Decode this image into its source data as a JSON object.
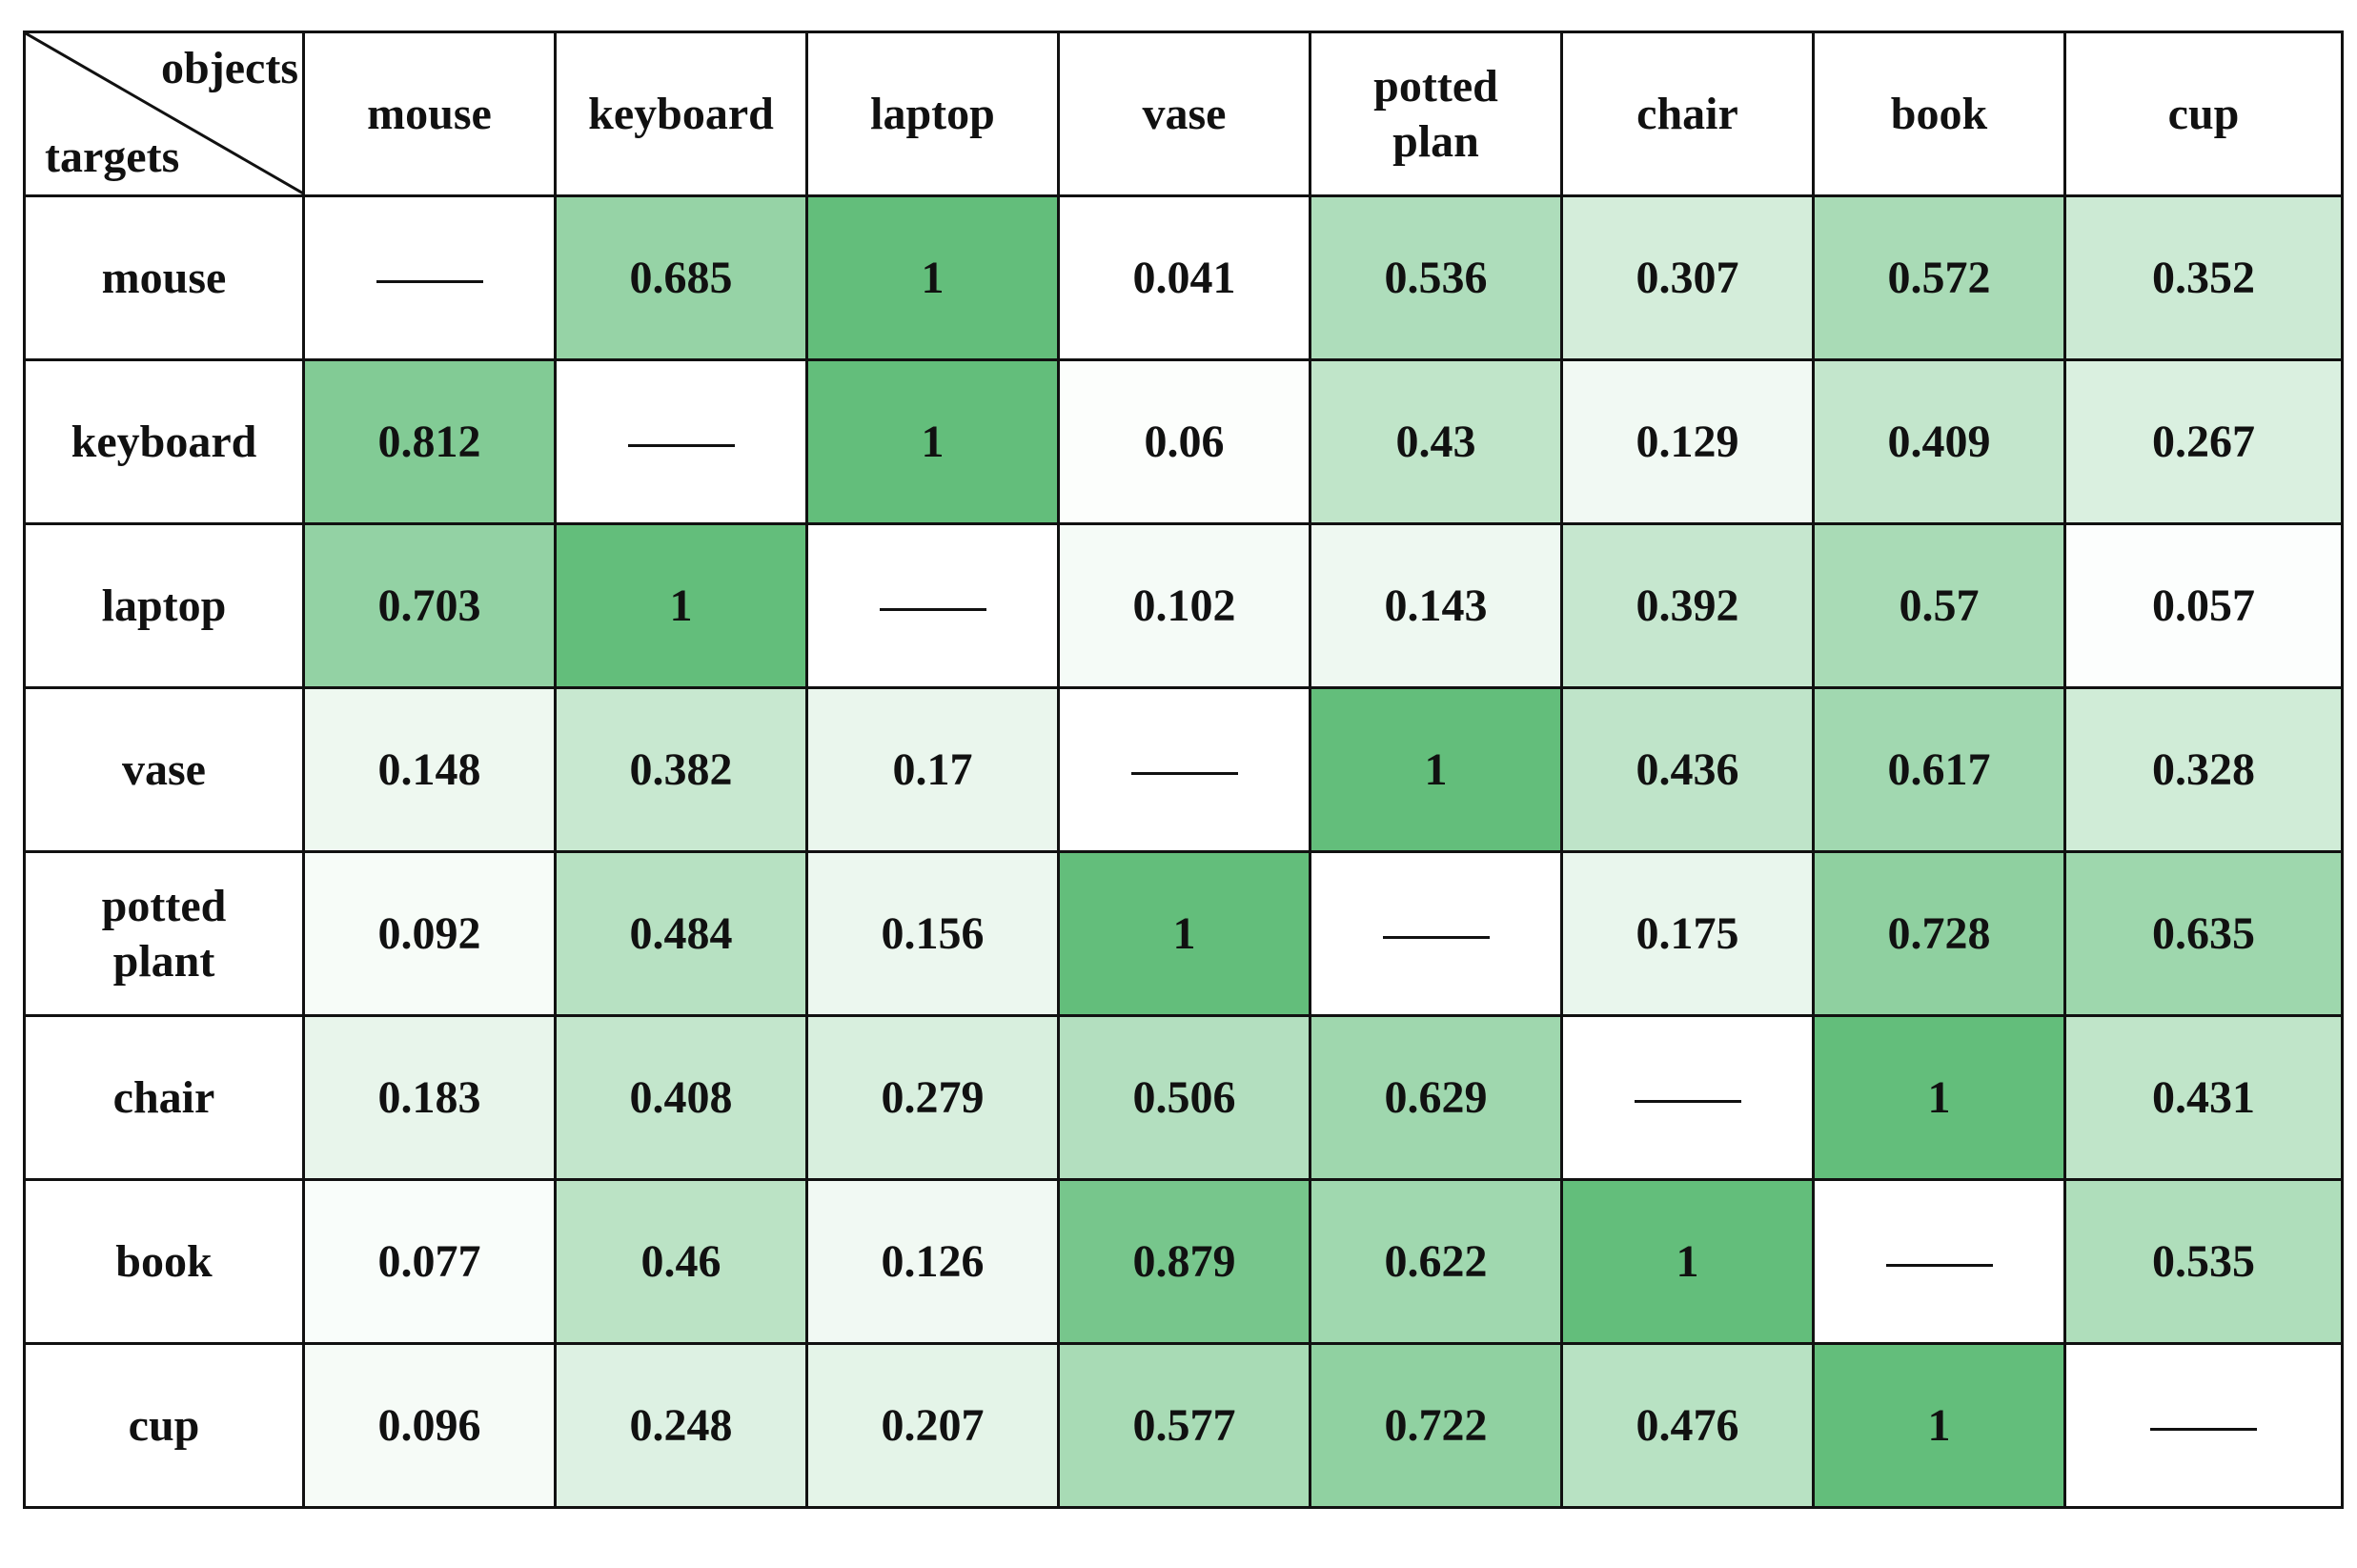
{
  "table": {
    "corner": {
      "top": "objects",
      "bottom": "targets"
    },
    "columns": [
      "mouse",
      "keyboard",
      "laptop",
      "vase",
      "potted plan",
      "chair",
      "book",
      "cup"
    ],
    "rows": [
      {
        "label": "mouse",
        "values": [
          null,
          0.685,
          1,
          0.041,
          0.536,
          0.307,
          0.572,
          0.352
        ]
      },
      {
        "label": "keyboard",
        "values": [
          0.812,
          null,
          1,
          0.06,
          0.43,
          0.129,
          0.409,
          0.267
        ]
      },
      {
        "label": "laptop",
        "values": [
          0.703,
          1,
          null,
          0.102,
          0.143,
          0.392,
          0.57,
          0.057
        ]
      },
      {
        "label": "vase",
        "values": [
          0.148,
          0.382,
          0.17,
          null,
          1,
          0.436,
          0.617,
          0.328
        ]
      },
      {
        "label": "potted plant",
        "values": [
          0.092,
          0.484,
          0.156,
          1,
          null,
          0.175,
          0.728,
          0.635
        ]
      },
      {
        "label": "chair",
        "values": [
          0.183,
          0.408,
          0.279,
          0.506,
          0.629,
          null,
          1,
          0.431
        ]
      },
      {
        "label": "book",
        "values": [
          0.077,
          0.46,
          0.126,
          0.879,
          0.622,
          1,
          null,
          0.535
        ]
      },
      {
        "label": "cup",
        "values": [
          0.096,
          0.248,
          0.207,
          0.577,
          0.722,
          0.476,
          1,
          null
        ]
      }
    ],
    "color_scale": [
      "#ffffff",
      "#63be7b"
    ]
  }
}
